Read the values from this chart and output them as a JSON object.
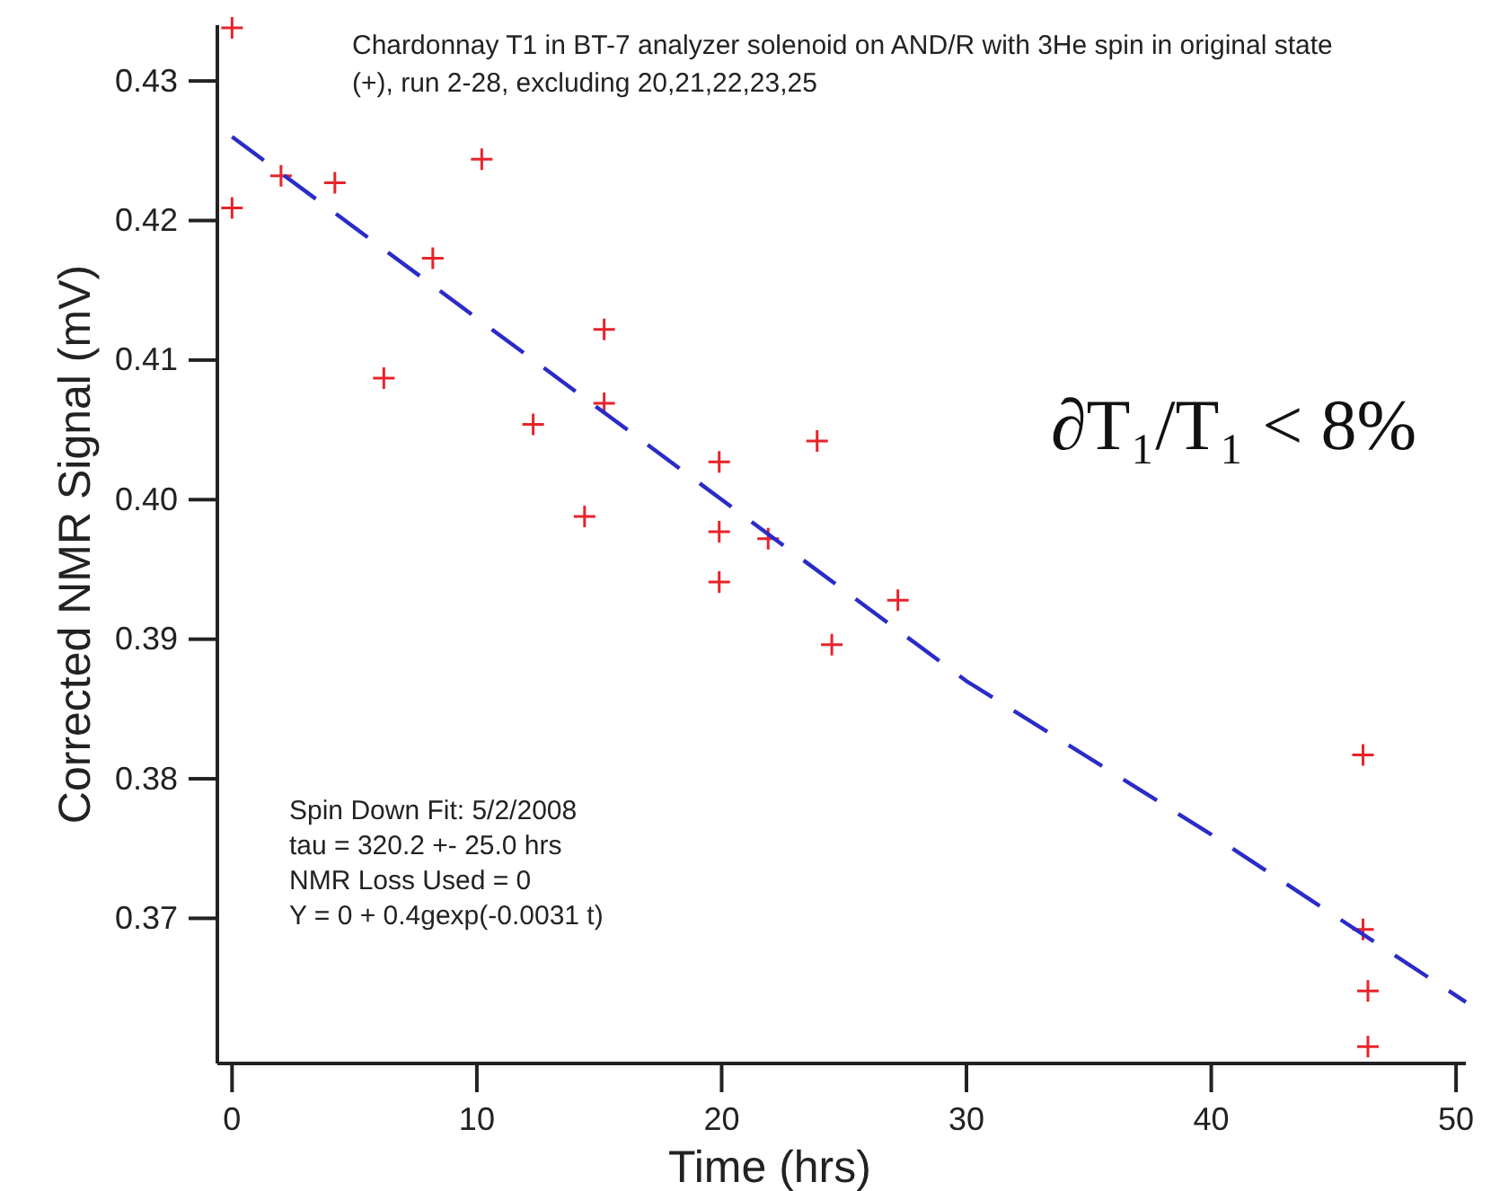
{
  "chart_data": {
    "type": "scatter",
    "title": "Chardonnay T1 in BT-7 analyzer solenoid on AND/R with 3He spin in original state (+), run 2-28, excluding 20,21,22,23,25",
    "xlabel": "Time (hrs)",
    "ylabel": "Corrected NMR Signal (mV)",
    "xlim": [
      -0.6,
      50.4
    ],
    "xticks": [
      0,
      10,
      20,
      30,
      40,
      50
    ],
    "ylim": [
      0.3596,
      0.434
    ],
    "yticks": [
      {
        "value": 0.37,
        "label": "0.37"
      },
      {
        "value": 0.38,
        "label": "0.38"
      },
      {
        "value": 0.39,
        "label": "0.39"
      },
      {
        "value": 0.4,
        "label": "0.40"
      },
      {
        "value": 0.41,
        "label": "0.41"
      },
      {
        "value": 0.42,
        "label": "0.42"
      },
      {
        "value": 0.43,
        "label": "0.43"
      }
    ],
    "marker": "cross",
    "series": [
      {
        "color": "#e8232a",
        "x": [
          0,
          0,
          2.0,
          4.2,
          6.2,
          8.2,
          10.2,
          12.3,
          14.4,
          15.2,
          15.2,
          19.9,
          19.9,
          19.9,
          21.9,
          23.9,
          24.5,
          27.2,
          46.2,
          46.2,
          46.4,
          46.4
        ],
        "values": [
          0.4338,
          0.4209,
          0.4232,
          0.4227,
          0.4087,
          0.4173,
          0.4244,
          0.4054,
          0.3988,
          0.4122,
          0.4069,
          0.4027,
          0.3977,
          0.3941,
          0.3972,
          0.4042,
          0.3896,
          0.3928,
          0.3817,
          0.3692,
          0.3648,
          0.3608
        ]
      },
      {
        "type": "line",
        "color": "#2b2bc8",
        "line_style": "dashed",
        "marker": "none",
        "x": [
          0,
          10,
          20,
          30,
          40,
          50.4
        ],
        "values": [
          0.426,
          0.413,
          0.4,
          0.387,
          0.376,
          0.364
        ]
      }
    ],
    "annotations": [
      "Spin Down Fit: 5/2/2008",
      "tau = 320.2  +- 25.0 hrs",
      "NMR Loss Used = 0",
      "Y = 0 + 0.4gexp(-0.0031 t)",
      "∂T₁/T₁ < 8%"
    ]
  }
}
